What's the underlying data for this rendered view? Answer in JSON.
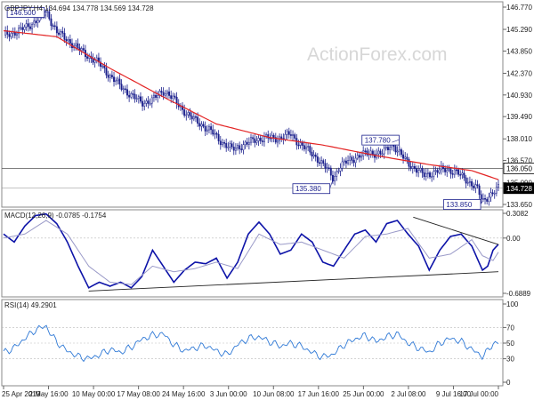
{
  "header": {
    "price_label": "GBPJPY,H4  134.694 134.778 134.569 134.728",
    "macd_label_a": "MACD(12,26,9)",
    "macd_label_b": " -0.0785 -0.1754",
    "rsi_label": "RSI(14) 49.2901"
  },
  "watermark": "ActionForex.com",
  "chart_data": [
    {
      "type": "candlestick",
      "panel": "price",
      "instrument": "GBPJPY",
      "timeframe": "H4",
      "title": "GBPJPY,H4  134.694 134.778 134.569 134.728",
      "ohlc_last": {
        "open": 134.694,
        "high": 134.778,
        "low": 134.569,
        "close": 134.728
      },
      "y_ticks": [
        "146.770",
        "145.290",
        "143.850",
        "142.370",
        "140.930",
        "139.490",
        "138.010",
        "136.570",
        "135.090",
        "133.650"
      ],
      "ylim": [
        133.65,
        146.77
      ],
      "x_ticks": [
        "25 Apr 2019",
        "2 May 16:00",
        "10 May 00:00",
        "17 May 08:00",
        "24 May 16:00",
        "3 Jun 00:00",
        "10 Jun 08:00",
        "17 Jun 16:00",
        "25 Jun 00:00",
        "2 Jul 08:00",
        "9 Jul 16:00",
        "17 Jul 00:00"
      ],
      "price_path": [
        [
          0,
          144.9
        ],
        [
          3,
          145.2
        ],
        [
          5,
          145.6
        ],
        [
          7,
          146.1
        ],
        [
          8,
          146.5
        ],
        [
          9,
          145.8
        ],
        [
          10,
          145.1
        ],
        [
          12,
          144.6
        ],
        [
          14,
          144.0
        ],
        [
          16,
          143.5
        ],
        [
          18,
          143.0
        ],
        [
          20,
          142.2
        ],
        [
          22,
          141.5
        ],
        [
          24,
          140.9
        ],
        [
          26,
          140.4
        ],
        [
          28,
          140.6
        ],
        [
          30,
          141.2
        ],
        [
          31,
          141.0
        ],
        [
          33,
          140.2
        ],
        [
          35,
          139.5
        ],
        [
          37,
          139.0
        ],
        [
          39,
          138.5
        ],
        [
          41,
          137.8
        ],
        [
          43,
          137.3
        ],
        [
          45,
          137.6
        ],
        [
          47,
          137.9
        ],
        [
          49,
          138.1
        ],
        [
          51,
          138.0
        ],
        [
          53,
          138.2
        ],
        [
          54,
          138.3
        ],
        [
          55,
          137.9
        ],
        [
          57,
          137.3
        ],
        [
          59,
          136.7
        ],
        [
          61,
          135.9
        ],
        [
          62,
          135.38
        ],
        [
          63,
          136.1
        ],
        [
          65,
          136.6
        ],
        [
          67,
          136.9
        ],
        [
          69,
          137.1
        ],
        [
          71,
          137.0
        ],
        [
          72,
          137.3
        ],
        [
          73,
          137.78
        ],
        [
          74,
          137.2
        ],
        [
          75,
          136.8
        ],
        [
          77,
          136.1
        ],
        [
          79,
          135.6
        ],
        [
          81,
          135.8
        ],
        [
          83,
          136.0
        ],
        [
          85,
          135.8
        ],
        [
          87,
          135.3
        ],
        [
          89,
          134.7
        ],
        [
          90,
          133.85
        ],
        [
          91,
          134.2
        ],
        [
          92,
          134.4
        ],
        [
          93,
          134.728
        ]
      ],
      "moving_average": [
        [
          0,
          145.2
        ],
        [
          10,
          144.8
        ],
        [
          20,
          142.7
        ],
        [
          30,
          140.8
        ],
        [
          40,
          139.0
        ],
        [
          50,
          138.1
        ],
        [
          60,
          137.6
        ],
        [
          70,
          136.9
        ],
        [
          80,
          136.3
        ],
        [
          88,
          135.9
        ],
        [
          93,
          135.3
        ]
      ],
      "annotations": [
        {
          "label": "146.500",
          "x": 8,
          "y": 146.5
        },
        {
          "label": "135.380",
          "x": 62,
          "y": 135.38
        },
        {
          "label": "137.780",
          "x": 73,
          "y": 137.78
        },
        {
          "label": "133.850",
          "x": 90,
          "y": 133.85
        },
        {
          "label": "136.050",
          "y": 136.05
        },
        {
          "label": "134.728",
          "y": 134.728
        }
      ],
      "colors": {
        "candles": "#1a1f8c",
        "moving_average": "#e32424",
        "level_line": "#555555"
      }
    },
    {
      "type": "line",
      "panel": "macd",
      "title": "MACD(12,26,9) -0.0785 -0.1754",
      "y_ticks": [
        "0.3082",
        "0.00",
        "-0.6889"
      ],
      "ylim": [
        -0.6889,
        0.3082
      ],
      "series": [
        {
          "name": "MACD",
          "color": "#0d13a8",
          "values": [
            [
              0,
              0.05
            ],
            [
              2,
              -0.05
            ],
            [
              4,
              0.15
            ],
            [
              6,
              0.28
            ],
            [
              8,
              0.3
            ],
            [
              10,
              0.18
            ],
            [
              12,
              -0.05
            ],
            [
              14,
              -0.35
            ],
            [
              16,
              -0.62
            ],
            [
              18,
              -0.55
            ],
            [
              20,
              -0.6
            ],
            [
              22,
              -0.55
            ],
            [
              24,
              -0.62
            ],
            [
              26,
              -0.48
            ],
            [
              28,
              -0.15
            ],
            [
              30,
              -0.35
            ],
            [
              32,
              -0.55
            ],
            [
              34,
              -0.4
            ],
            [
              36,
              -0.3
            ],
            [
              38,
              -0.32
            ],
            [
              40,
              -0.25
            ],
            [
              42,
              -0.5
            ],
            [
              44,
              -0.3
            ],
            [
              46,
              0.05
            ],
            [
              48,
              0.2
            ],
            [
              50,
              0.05
            ],
            [
              52,
              -0.2
            ],
            [
              54,
              -0.15
            ],
            [
              56,
              0.05
            ],
            [
              58,
              -0.05
            ],
            [
              60,
              -0.3
            ],
            [
              62,
              -0.35
            ],
            [
              64,
              -0.15
            ],
            [
              66,
              0.05
            ],
            [
              68,
              0.1
            ],
            [
              70,
              -0.05
            ],
            [
              72,
              0.18
            ],
            [
              74,
              0.22
            ],
            [
              76,
              0.05
            ],
            [
              78,
              -0.1
            ],
            [
              80,
              -0.4
            ],
            [
              82,
              -0.15
            ],
            [
              84,
              0.02
            ],
            [
              86,
              0.05
            ],
            [
              88,
              -0.1
            ],
            [
              90,
              -0.4
            ],
            [
              91,
              -0.35
            ],
            [
              92,
              -0.15
            ],
            [
              93,
              -0.0785
            ]
          ]
        },
        {
          "name": "Signal",
          "color": "#9a9ac8",
          "values": [
            [
              0,
              0.0
            ],
            [
              4,
              0.05
            ],
            [
              8,
              0.22
            ],
            [
              12,
              0.05
            ],
            [
              16,
              -0.35
            ],
            [
              20,
              -0.55
            ],
            [
              24,
              -0.58
            ],
            [
              28,
              -0.35
            ],
            [
              32,
              -0.42
            ],
            [
              36,
              -0.38
            ],
            [
              40,
              -0.3
            ],
            [
              44,
              -0.38
            ],
            [
              48,
              0.05
            ],
            [
              52,
              -0.08
            ],
            [
              56,
              -0.05
            ],
            [
              60,
              -0.15
            ],
            [
              64,
              -0.25
            ],
            [
              68,
              0.02
            ],
            [
              72,
              0.05
            ],
            [
              76,
              0.12
            ],
            [
              80,
              -0.25
            ],
            [
              84,
              -0.2
            ],
            [
              88,
              -0.02
            ],
            [
              90,
              -0.22
            ],
            [
              92,
              -0.28
            ],
            [
              93,
              -0.1754
            ]
          ]
        }
      ],
      "trendlines": [
        {
          "name": "upper",
          "points": [
            [
              77,
              0.26
            ],
            [
              93,
              -0.08
            ]
          ]
        },
        {
          "name": "lower",
          "points": [
            [
              16,
              -0.66
            ],
            [
              93,
              -0.42
            ]
          ]
        }
      ],
      "zero_line": true
    },
    {
      "type": "line",
      "panel": "rsi",
      "title": "RSI(14) 49.2901",
      "y_ticks": [
        "100",
        "70",
        "50",
        "30",
        "0"
      ],
      "ylim": [
        0,
        100
      ],
      "series": [
        {
          "name": "RSI(14)",
          "color": "#2f79d6",
          "values": [
            [
              0,
              38
            ],
            [
              2,
              44
            ],
            [
              4,
              56
            ],
            [
              6,
              67
            ],
            [
              8,
              72
            ],
            [
              9,
              60
            ],
            [
              10,
              52
            ],
            [
              11,
              45
            ],
            [
              12,
              40
            ],
            [
              14,
              33
            ],
            [
              16,
              30
            ],
            [
              18,
              35
            ],
            [
              20,
              42
            ],
            [
              22,
              38
            ],
            [
              24,
              45
            ],
            [
              26,
              55
            ],
            [
              28,
              60
            ],
            [
              30,
              62
            ],
            [
              32,
              48
            ],
            [
              34,
              40
            ],
            [
              36,
              44
            ],
            [
              38,
              47
            ],
            [
              40,
              40
            ],
            [
              42,
              35
            ],
            [
              44,
              48
            ],
            [
              46,
              56
            ],
            [
              48,
              58
            ],
            [
              50,
              52
            ],
            [
              52,
              46
            ],
            [
              54,
              50
            ],
            [
              56,
              46
            ],
            [
              58,
              38
            ],
            [
              60,
              32
            ],
            [
              62,
              36
            ],
            [
              64,
              48
            ],
            [
              66,
              55
            ],
            [
              68,
              60
            ],
            [
              70,
              52
            ],
            [
              72,
              58
            ],
            [
              74,
              62
            ],
            [
              76,
              50
            ],
            [
              78,
              44
            ],
            [
              80,
              38
            ],
            [
              82,
              50
            ],
            [
              84,
              56
            ],
            [
              86,
              52
            ],
            [
              88,
              42
            ],
            [
              90,
              33
            ],
            [
              91,
              40
            ],
            [
              92,
              50
            ],
            [
              93,
              49.29
            ]
          ]
        }
      ]
    }
  ]
}
